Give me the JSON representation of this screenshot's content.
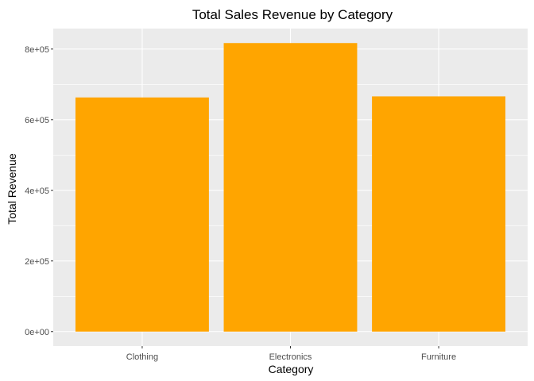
{
  "chart_data": {
    "type": "bar",
    "title": "Total Sales Revenue by Category",
    "xlabel": "Category",
    "ylabel": "Total Revenue",
    "categories": [
      "Clothing",
      "Electronics",
      "Furniture"
    ],
    "values": [
      663000,
      817000,
      666000
    ],
    "ylim": [
      -41000,
      858000
    ],
    "yticks": [
      0,
      200000,
      400000,
      600000,
      800000
    ],
    "ytick_labels": [
      "0e+00",
      "2e+05",
      "4e+05",
      "6e+05",
      "8e+05"
    ],
    "grid": true,
    "legend": "none",
    "colors": {
      "bar": "#FFA500",
      "panel": "#EBEBEB",
      "grid_major": "#FFFFFF",
      "tick": "#333333"
    }
  }
}
